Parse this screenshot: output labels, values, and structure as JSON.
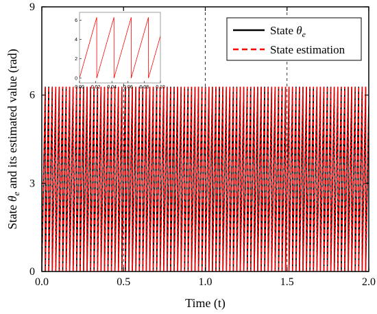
{
  "chart_data": {
    "type": "line",
    "xlabel": "Time (t)",
    "ylabel_prefix": "State ",
    "ylabel_symbol": "θ",
    "ylabel_sub": "e",
    "ylabel_suffix": " and its estimated value  (rad)",
    "xlim": [
      0.0,
      2.0
    ],
    "ylim": [
      0,
      9
    ],
    "x_ticks": [
      0.0,
      0.5,
      1.0,
      1.5,
      2.0
    ],
    "x_tick_labels": [
      "0.0",
      "0.5",
      "1.0",
      "1.5",
      "2.0"
    ],
    "y_ticks": [
      0,
      3,
      6,
      9
    ],
    "y_tick_labels": [
      "0",
      "3",
      "6",
      "9"
    ],
    "legend_position": "top-right",
    "series": [
      {
        "name": "State",
        "name_symbol": "θ",
        "name_sub": "e",
        "color": "#000000",
        "style": "solid",
        "waveform": "sawtooth",
        "min": 0,
        "max": 6.283,
        "period": 0.0213
      },
      {
        "name": "State estimation",
        "color": "#ff0000",
        "style": "dashed",
        "waveform": "sawtooth",
        "min": 0,
        "max": 6.283,
        "period": 0.0213
      }
    ],
    "inset": {
      "xlim": [
        0.0,
        0.1
      ],
      "ylim": [
        -0.5,
        6.8
      ],
      "x_tick_labels": [
        "0.00",
        "0.02",
        "0.04",
        "0.06",
        "0.08",
        "0.10"
      ],
      "x_ticks": [
        0.0,
        0.02,
        0.04,
        0.06,
        0.08,
        0.1
      ],
      "y_tick_labels": [
        "0",
        "2",
        "4",
        "6"
      ],
      "y_ticks": [
        0,
        2,
        4,
        6
      ],
      "color": "#ff0000"
    }
  }
}
